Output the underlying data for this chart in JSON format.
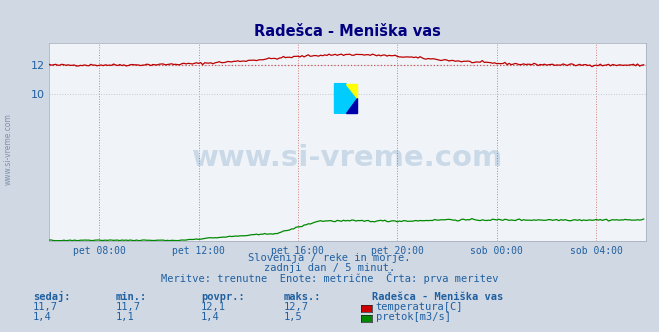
{
  "title": "Radešca - Meniška vas",
  "bg_color": "#d0d8e4",
  "plot_bg_color": "#f0f4f8",
  "grid_color_h": "#c0c8d0",
  "grid_color_v": "#d08080",
  "xlabel_ticks": [
    "pet 08:00",
    "pet 12:00",
    "pet 16:00",
    "pet 20:00",
    "sob 00:00",
    "sob 04:00"
  ],
  "yticks": [
    10,
    12
  ],
  "ylim": [
    0,
    13.5
  ],
  "xlim": [
    0,
    288
  ],
  "temp_color": "#bb0000",
  "flow_color": "#008800",
  "avg_line_color": "#cc3333",
  "watermark": "www.si-vreme.com",
  "watermark_color": "#2060a0",
  "watermark_alpha": 0.18,
  "subtitle1": "Slovenija / reke in morje.",
  "subtitle2": "zadnji dan / 5 minut.",
  "subtitle3": "Meritve: trenutne  Enote: metrične  Črta: prva meritev",
  "footer_color": "#2060a0",
  "legend_title": "Radešca - Meniška vas",
  "legend_items": [
    "temperatura[C]",
    "pretok[m3/s]"
  ],
  "legend_colors": [
    "#cc0000",
    "#008800"
  ],
  "stats_headers": [
    "sedaj:",
    "min.:",
    "povpr.:",
    "maks.:"
  ],
  "stats_temp": [
    "11,7",
    "11,7",
    "12,1",
    "12,7"
  ],
  "stats_flow": [
    "1,4",
    "1,1",
    "1,4",
    "1,5"
  ],
  "temp_avg": 12.0,
  "n_points": 288
}
